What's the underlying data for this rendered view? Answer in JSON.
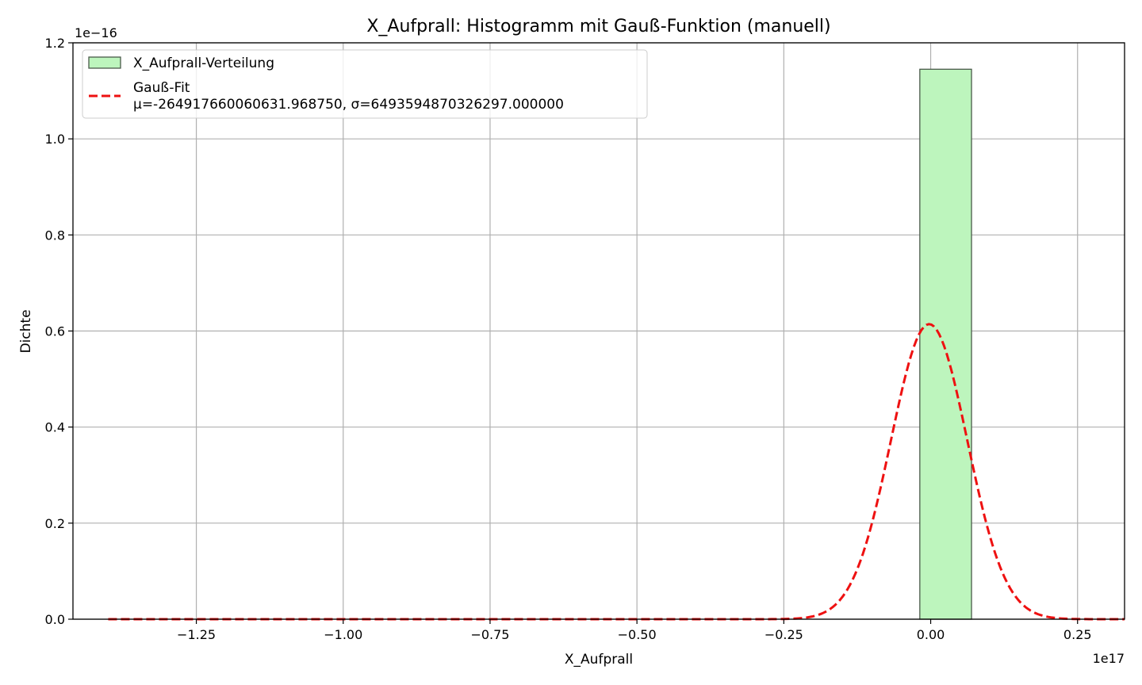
{
  "chart_data": {
    "type": "bar",
    "title": "X_Aufprall: Histogramm mit Gauß-Funktion (manuell)",
    "xlabel": "X_Aufprall",
    "ylabel": "Dichte",
    "x_offset_label": "1e17",
    "y_offset_label": "1e−16",
    "x_scale": 1e+17,
    "y_scale": 1e-16,
    "xlim": [
      -1.46,
      0.33
    ],
    "ylim": [
      0,
      1.2
    ],
    "x_ticks": [
      -1.25,
      -1.0,
      -0.75,
      -0.5,
      -0.25,
      0.0,
      0.25
    ],
    "x_tick_labels": [
      "−1.25",
      "−1.00",
      "−0.75",
      "−0.50",
      "−0.25",
      "0.00",
      "0.25"
    ],
    "y_ticks": [
      0.0,
      0.2,
      0.4,
      0.6,
      0.8,
      1.0,
      1.2
    ],
    "y_tick_labels": [
      "0.0",
      "0.2",
      "0.4",
      "0.6",
      "0.8",
      "1.0",
      "1.2"
    ],
    "grid": true,
    "legend_position": "upper-left",
    "series": [
      {
        "name": "X_Aufprall-Verteilung",
        "kind": "histogram",
        "color": "#bdf5bd",
        "edge_color": "#4a5a4a",
        "bins": [
          {
            "x0": -0.0185,
            "x1": 0.0695,
            "density": 1.145
          }
        ]
      },
      {
        "name": "Gauß-Fit",
        "name_line2": "μ=-264917660060631.968750, σ=6493594870326297.000000",
        "kind": "line",
        "style": "dashed",
        "color": "#ee1111",
        "mu": -0.00264917660060632,
        "sigma": 0.06493594870326297,
        "x_range": [
          -1.4,
          0.33
        ]
      }
    ]
  }
}
